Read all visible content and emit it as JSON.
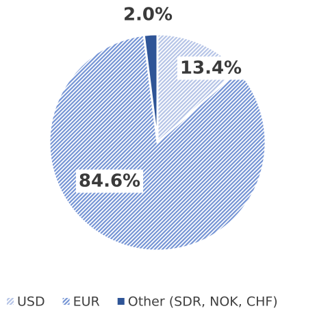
{
  "chart_data": {
    "type": "pie",
    "categories": [
      "USD",
      "EUR",
      "Other (SDR, NOK, CHF)"
    ],
    "values": [
      13.4,
      84.6,
      2.0
    ],
    "value_labels": [
      "13.4%",
      "84.6%",
      "2.0%"
    ],
    "colors": [
      "#b4c3e6",
      "#7393d4",
      "#2f5597"
    ],
    "hatched": [
      true,
      true,
      false
    ],
    "legend": "bottom"
  }
}
